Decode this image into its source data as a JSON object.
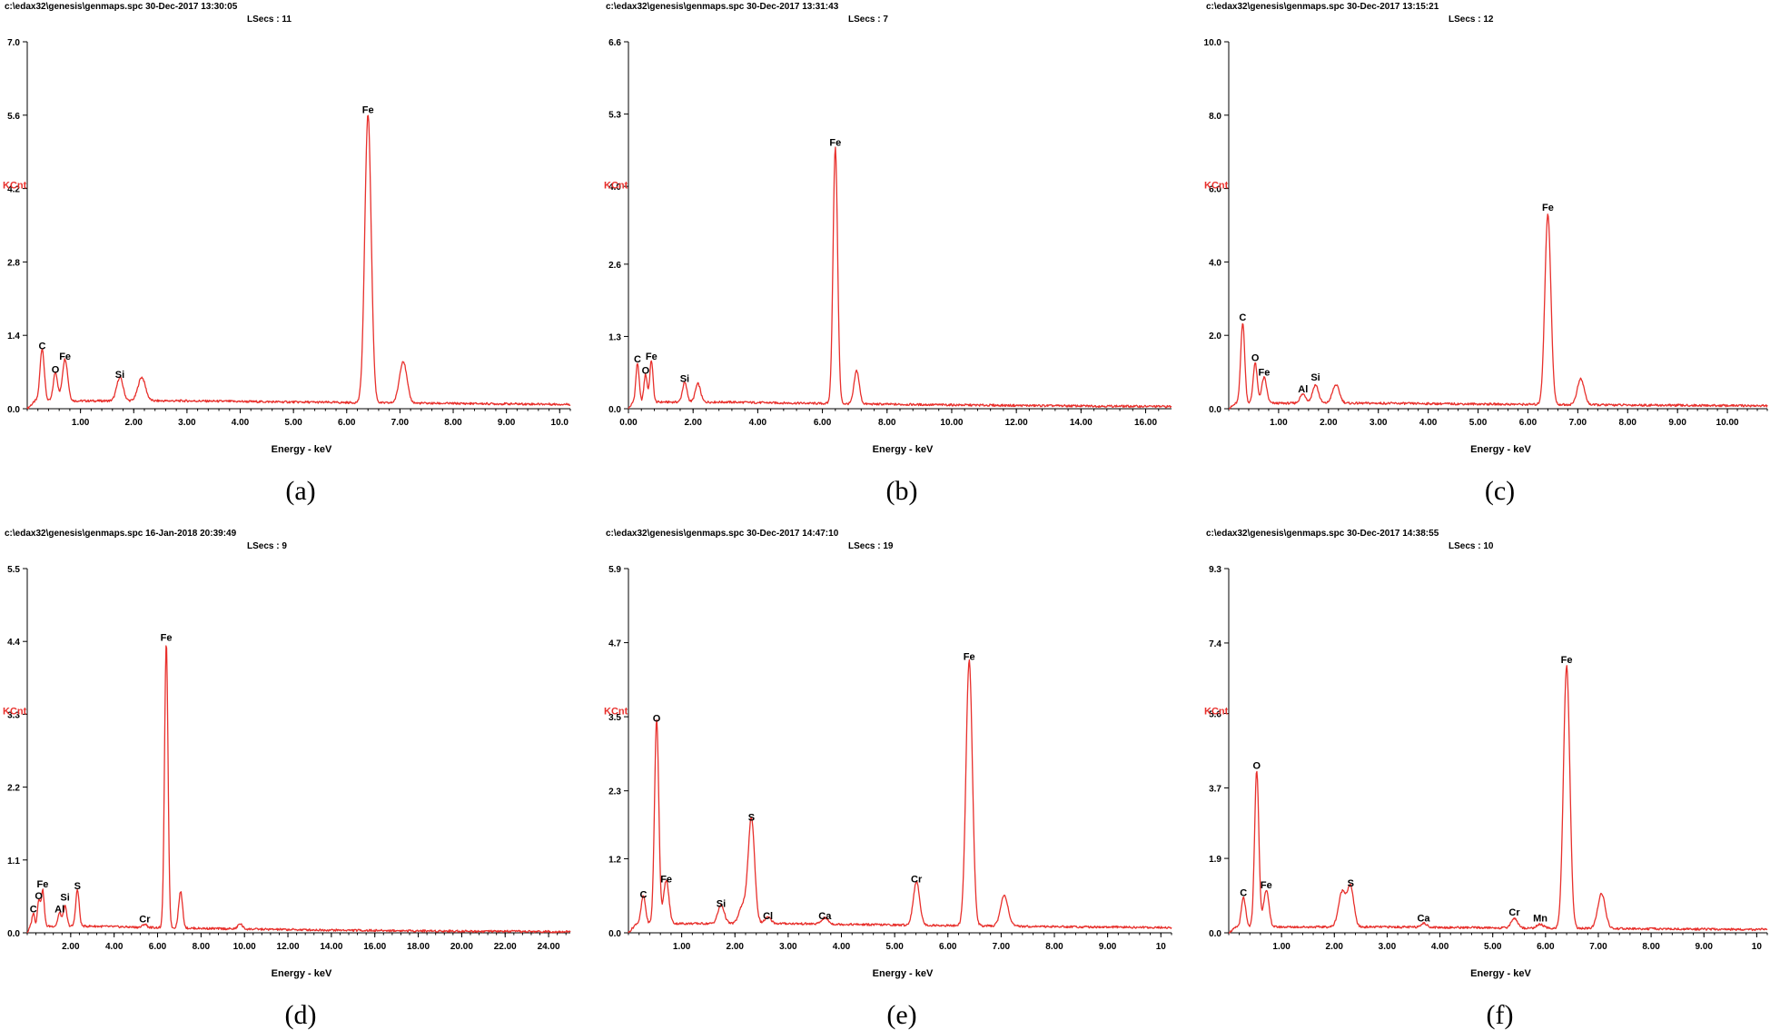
{
  "colors": {
    "spectrum": "#e8302c",
    "ylabel": "#e8302c",
    "axis": "#000000"
  },
  "chart_data": [
    {
      "type": "line",
      "caption": "(a)",
      "header": "c:\\edax32\\genesis\\genmaps.spc  30-Dec-2017 13:30:05",
      "lsecs": "LSecs :  11",
      "ylabel": "KCnt",
      "xlabel": "Energy - keV",
      "xlim": [
        0,
        10.2
      ],
      "ylim": [
        0,
        7.0
      ],
      "yticks": [
        0,
        1.4,
        2.8,
        4.2,
        5.6,
        7.0
      ],
      "ytick_labels": [
        "0.0",
        "1.4",
        "2.8",
        "4.2",
        "5.6",
        "7.0"
      ],
      "xticks": [
        1,
        2,
        3,
        4,
        5,
        6,
        7,
        8,
        9,
        10
      ],
      "xtick_labels": [
        "1.00",
        "2.00",
        "3.00",
        "4.00",
        "5.00",
        "6.00",
        "7.00",
        "8.00",
        "9.00",
        "10.0"
      ],
      "baseline": 0.15,
      "peaks": [
        {
          "label": "C",
          "e": 0.28,
          "h": 1.0,
          "w": 0.04
        },
        {
          "label": "O",
          "e": 0.53,
          "h": 0.55,
          "w": 0.04
        },
        {
          "label": "Fe",
          "e": 0.71,
          "h": 0.8,
          "w": 0.05
        },
        {
          "label": "Si",
          "e": 1.74,
          "h": 0.45,
          "w": 0.06
        },
        {
          "label": "",
          "e": 2.15,
          "h": 0.45,
          "w": 0.07
        },
        {
          "label": "Fe",
          "e": 6.4,
          "h": 5.5,
          "w": 0.06
        },
        {
          "label": "",
          "e": 7.06,
          "h": 0.8,
          "w": 0.07
        }
      ]
    },
    {
      "type": "line",
      "caption": "(b)",
      "header": "c:\\edax32\\genesis\\genmaps.spc  30-Dec-2017 13:31:43",
      "lsecs": "LSecs :  7",
      "ylabel": "KCnt",
      "xlabel": "Energy - keV",
      "xlim": [
        0,
        16.8
      ],
      "ylim": [
        0,
        6.6
      ],
      "yticks": [
        0,
        1.3,
        2.6,
        4.0,
        5.3,
        6.6
      ],
      "ytick_labels": [
        "0.0",
        "1.3",
        "2.6",
        "4.0",
        "5.3",
        "6.6"
      ],
      "xticks": [
        0,
        2,
        4,
        6,
        8,
        10,
        12,
        14,
        16
      ],
      "xtick_labels": [
        "0.00",
        "2.00",
        "4.00",
        "6.00",
        "8.00",
        "10.00",
        "12.00",
        "14.00",
        "16.00"
      ],
      "baseline": 0.12,
      "peaks": [
        {
          "label": "C",
          "e": 0.28,
          "h": 0.7,
          "w": 0.05
        },
        {
          "label": "O",
          "e": 0.53,
          "h": 0.5,
          "w": 0.05
        },
        {
          "label": "Fe",
          "e": 0.71,
          "h": 0.75,
          "w": 0.05
        },
        {
          "label": "Si",
          "e": 1.74,
          "h": 0.35,
          "w": 0.07
        },
        {
          "label": "",
          "e": 2.15,
          "h": 0.33,
          "w": 0.08
        },
        {
          "label": "Fe",
          "e": 6.4,
          "h": 4.6,
          "w": 0.07
        },
        {
          "label": "",
          "e": 7.06,
          "h": 0.6,
          "w": 0.08
        }
      ]
    },
    {
      "type": "line",
      "caption": "(c)",
      "header": "c:\\edax32\\genesis\\genmaps.spc  30-Dec-2017 13:15:21",
      "lsecs": "LSecs :  12",
      "ylabel": "KCnt",
      "xlabel": "Energy - keV",
      "xlim": [
        0,
        10.8
      ],
      "ylim": [
        0,
        10.0
      ],
      "yticks": [
        0,
        2,
        4,
        6,
        8,
        10
      ],
      "ytick_labels": [
        "0.0",
        "2.0",
        "4.0",
        "6.0",
        "8.0",
        "10.0"
      ],
      "xticks": [
        1,
        2,
        3,
        4,
        5,
        6,
        7,
        8,
        9,
        10
      ],
      "xtick_labels": [
        "1.00",
        "2.00",
        "3.00",
        "4.00",
        "5.00",
        "6.00",
        "7.00",
        "8.00",
        "9.00",
        "10.00"
      ],
      "baseline": 0.15,
      "peaks": [
        {
          "label": "C",
          "e": 0.28,
          "h": 2.2,
          "w": 0.04
        },
        {
          "label": "O",
          "e": 0.53,
          "h": 1.1,
          "w": 0.04
        },
        {
          "label": "Fe",
          "e": 0.71,
          "h": 0.7,
          "w": 0.05
        },
        {
          "label": "Al",
          "e": 1.49,
          "h": 0.25,
          "w": 0.06
        },
        {
          "label": "Si",
          "e": 1.74,
          "h": 0.5,
          "w": 0.06
        },
        {
          "label": "",
          "e": 2.15,
          "h": 0.5,
          "w": 0.07
        },
        {
          "label": "Fe",
          "e": 6.4,
          "h": 5.2,
          "w": 0.06
        },
        {
          "label": "",
          "e": 7.06,
          "h": 0.7,
          "w": 0.07
        }
      ]
    },
    {
      "type": "line",
      "caption": "(d)",
      "header": "c:\\edax32\\genesis\\genmaps.spc  16-Jan-2018 20:39:49",
      "lsecs": "LSecs :  9",
      "ylabel": "KCnt",
      "xlabel": "Energy - keV",
      "xlim": [
        0,
        25.0
      ],
      "ylim": [
        0,
        5.5
      ],
      "yticks": [
        0,
        1.1,
        2.2,
        3.3,
        4.4,
        5.5
      ],
      "ytick_labels": [
        "0.0",
        "1.1",
        "2.2",
        "3.3",
        "4.4",
        "5.5"
      ],
      "xticks": [
        2,
        4,
        6,
        8,
        10,
        12,
        14,
        16,
        18,
        20,
        22,
        24
      ],
      "xtick_labels": [
        "2.00",
        "4.00",
        "6.00",
        "8.00",
        "10.00",
        "12.00",
        "14.00",
        "16.00",
        "18.00",
        "20.00",
        "22.00",
        "24.00"
      ],
      "baseline": 0.1,
      "peaks": [
        {
          "label": "C",
          "e": 0.28,
          "h": 0.2,
          "w": 0.06
        },
        {
          "label": "O",
          "e": 0.53,
          "h": 0.4,
          "w": 0.06
        },
        {
          "label": "Fe",
          "e": 0.71,
          "h": 0.55,
          "w": 0.07
        },
        {
          "label": "Al",
          "e": 1.49,
          "h": 0.2,
          "w": 0.08
        },
        {
          "label": "Si",
          "e": 1.74,
          "h": 0.3,
          "w": 0.08
        },
        {
          "label": "S",
          "e": 2.31,
          "h": 0.55,
          "w": 0.08
        },
        {
          "label": "Cr",
          "e": 5.41,
          "h": 0.05,
          "w": 0.09
        },
        {
          "label": "Fe",
          "e": 6.4,
          "h": 4.3,
          "w": 0.08
        },
        {
          "label": "",
          "e": 7.06,
          "h": 0.55,
          "w": 0.09
        },
        {
          "label": "",
          "e": 9.8,
          "h": 0.08,
          "w": 0.1
        }
      ]
    },
    {
      "type": "line",
      "caption": "(e)",
      "header": "c:\\edax32\\genesis\\genmaps.spc  30-Dec-2017 14:47:10",
      "lsecs": "LSecs :  19",
      "ylabel": "KCnt",
      "xlabel": "Energy - keV",
      "xlim": [
        0,
        10.2
      ],
      "ylim": [
        0,
        5.9
      ],
      "yticks": [
        0,
        1.2,
        2.3,
        3.5,
        4.7,
        5.9
      ],
      "ytick_labels": [
        "0.0",
        "1.2",
        "2.3",
        "3.5",
        "4.7",
        "5.9"
      ],
      "xticks": [
        1,
        2,
        3,
        4,
        5,
        6,
        7,
        8,
        9,
        10
      ],
      "xtick_labels": [
        "1.00",
        "2.00",
        "3.00",
        "4.00",
        "5.00",
        "6.00",
        "7.00",
        "8.00",
        "9.00",
        "10"
      ],
      "baseline": 0.15,
      "peaks": [
        {
          "label": "C",
          "e": 0.28,
          "h": 0.45,
          "w": 0.04
        },
        {
          "label": "O",
          "e": 0.53,
          "h": 3.3,
          "w": 0.04
        },
        {
          "label": "Fe",
          "e": 0.71,
          "h": 0.7,
          "w": 0.05
        },
        {
          "label": "Si",
          "e": 1.74,
          "h": 0.3,
          "w": 0.06
        },
        {
          "label": "",
          "e": 2.15,
          "h": 0.3,
          "w": 0.07
        },
        {
          "label": "S",
          "e": 2.31,
          "h": 1.7,
          "w": 0.06
        },
        {
          "label": "Cl",
          "e": 2.62,
          "h": 0.1,
          "w": 0.06
        },
        {
          "label": "Ca",
          "e": 3.69,
          "h": 0.1,
          "w": 0.06
        },
        {
          "label": "Cr",
          "e": 5.41,
          "h": 0.7,
          "w": 0.06
        },
        {
          "label": "Fe",
          "e": 6.4,
          "h": 4.3,
          "w": 0.06
        },
        {
          "label": "",
          "e": 7.06,
          "h": 0.5,
          "w": 0.07
        }
      ]
    },
    {
      "type": "line",
      "caption": "(f)",
      "header": "c:\\edax32\\genesis\\genmaps.spc  30-Dec-2017 14:38:55",
      "lsecs": "LSecs :  10",
      "ylabel": "KCnt",
      "xlabel": "Energy - keV",
      "xlim": [
        0,
        10.2
      ],
      "ylim": [
        0,
        9.3
      ],
      "yticks": [
        0,
        1.9,
        3.7,
        5.6,
        7.4,
        9.3
      ],
      "ytick_labels": [
        "0.0",
        "1.9",
        "3.7",
        "5.6",
        "7.4",
        "9.3"
      ],
      "xticks": [
        1,
        2,
        3,
        4,
        5,
        6,
        7,
        8,
        9,
        10
      ],
      "xtick_labels": [
        "1.00",
        "2.00",
        "3.00",
        "4.00",
        "5.00",
        "6.00",
        "7.00",
        "8.00",
        "9.00",
        "10"
      ],
      "baseline": 0.15,
      "peaks": [
        {
          "label": "C",
          "e": 0.28,
          "h": 0.75,
          "w": 0.04
        },
        {
          "label": "O",
          "e": 0.53,
          "h": 4.0,
          "w": 0.04
        },
        {
          "label": "Fe",
          "e": 0.71,
          "h": 0.95,
          "w": 0.05
        },
        {
          "label": "",
          "e": 2.15,
          "h": 0.9,
          "w": 0.07
        },
        {
          "label": "S",
          "e": 2.31,
          "h": 1.0,
          "w": 0.06
        },
        {
          "label": "Ca",
          "e": 3.69,
          "h": 0.1,
          "w": 0.06
        },
        {
          "label": "Cr",
          "e": 5.41,
          "h": 0.25,
          "w": 0.06
        },
        {
          "label": "Mn",
          "e": 5.9,
          "h": 0.1,
          "w": 0.06
        },
        {
          "label": "Fe",
          "e": 6.4,
          "h": 6.7,
          "w": 0.06
        },
        {
          "label": "",
          "e": 7.06,
          "h": 0.9,
          "w": 0.07
        }
      ]
    }
  ]
}
